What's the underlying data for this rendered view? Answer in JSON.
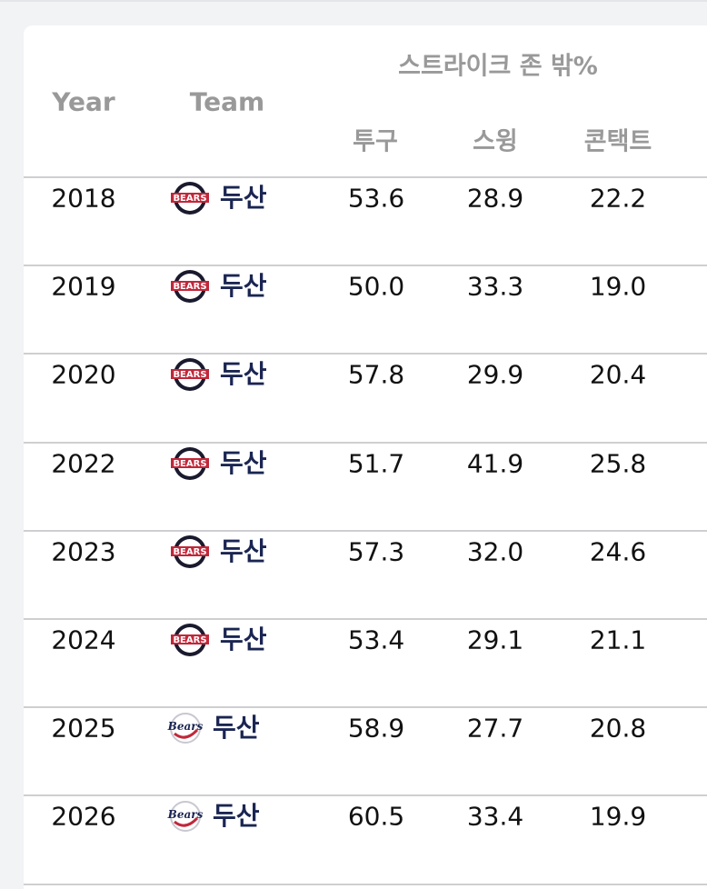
{
  "table": {
    "group_header": "스트라이크 존 밖%",
    "columns": [
      "Year",
      "Team",
      "투구",
      "스윙",
      "콘택트"
    ],
    "rows": [
      [
        "2018",
        "두산",
        "53.6",
        "28.9",
        "22.2"
      ],
      [
        "2019",
        "두산",
        "50.0",
        "33.3",
        "19.0"
      ],
      [
        "2020",
        "두산",
        "57.8",
        "29.9",
        "20.4"
      ],
      [
        "2022",
        "두산",
        "51.7",
        "41.9",
        "25.8"
      ],
      [
        "2023",
        "두산",
        "57.3",
        "32.0",
        "24.6"
      ],
      [
        "2024",
        "두산",
        "53.4",
        "29.1",
        "21.1"
      ],
      [
        "2025",
        "두산",
        "58.9",
        "27.7",
        "20.8"
      ],
      [
        "2026",
        "두산",
        "60.5",
        "33.4",
        "19.9"
      ]
    ]
  }
}
